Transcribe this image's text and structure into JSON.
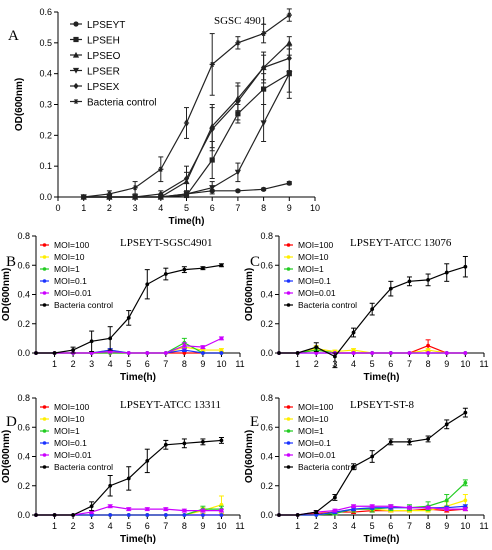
{
  "chart_data": [
    {
      "letter": "A",
      "type": "line",
      "title": "SGSC 4901",
      "xlabel": "Time(h)",
      "ylabel": "OD(600nm)",
      "xlim": [
        0,
        10
      ],
      "ylim": [
        0,
        0.6
      ],
      "xticks": [
        0,
        1,
        2,
        3,
        4,
        5,
        6,
        7,
        8,
        9,
        10
      ],
      "yticks": [
        0.0,
        0.1,
        0.2,
        0.3,
        0.4,
        0.5,
        0.6
      ],
      "ytick_labels": [
        "0.0",
        "0.1",
        "0.2",
        "0.3",
        "0.4",
        "0.5",
        "0.6"
      ],
      "legend_position": "top-left",
      "x": [
        1,
        2,
        3,
        4,
        5,
        6,
        7,
        8,
        9
      ],
      "series": [
        {
          "name": "LPSEYT",
          "marker": "circle",
          "color": "#222222",
          "values": [
            0.0,
            0.0,
            0.0,
            0.0,
            0.01,
            0.02,
            0.02,
            0.025,
            0.045
          ],
          "errors": [
            0,
            0,
            0,
            0,
            0.003,
            0.003,
            0.003,
            0.004,
            0.005
          ]
        },
        {
          "name": "LPSEH",
          "marker": "square",
          "color": "#222222",
          "values": [
            0.0,
            0.0,
            0.0,
            0.0,
            0.005,
            0.12,
            0.27,
            0.35,
            0.4
          ],
          "errors": [
            0,
            0,
            0,
            0,
            0.005,
            0.06,
            0.03,
            0.05,
            0.08
          ]
        },
        {
          "name": "LPSEO",
          "marker": "triangle-up",
          "color": "#222222",
          "values": [
            0.0,
            0.0,
            0.0,
            0.0,
            0.05,
            0.23,
            0.32,
            0.42,
            0.5
          ],
          "errors": [
            0,
            0,
            0,
            0,
            0.03,
            0.07,
            0.04,
            0.04,
            0.02
          ]
        },
        {
          "name": "LPSER",
          "marker": "triangle-down",
          "color": "#222222",
          "values": [
            0.0,
            0.0,
            0.0,
            0.0,
            0.01,
            0.03,
            0.08,
            0.24,
            0.4
          ],
          "errors": [
            0,
            0,
            0,
            0,
            0.005,
            0.02,
            0.03,
            0.06,
            0.06
          ]
        },
        {
          "name": "LPSEX",
          "marker": "diamond",
          "color": "#222222",
          "values": [
            0.0,
            0.0,
            0.0,
            0.01,
            0.06,
            0.22,
            0.31,
            0.42,
            0.45
          ],
          "errors": [
            0,
            0,
            0,
            0.01,
            0.04,
            0.07,
            0.06,
            0.05,
            0.04
          ]
        },
        {
          "name": "Bacteria control",
          "marker": "star",
          "color": "#222222",
          "values": [
            0.0,
            0.01,
            0.03,
            0.09,
            0.24,
            0.43,
            0.5,
            0.53,
            0.59
          ],
          "errors": [
            0,
            0.01,
            0.02,
            0.04,
            0.05,
            0.1,
            0.02,
            0.03,
            0.02
          ]
        }
      ]
    },
    {
      "letter": "B",
      "type": "line",
      "title": "LPSEYT-SGSC4901",
      "xlabel": "Time(h)",
      "ylabel": "OD(600nm)",
      "xlim": [
        0,
        11
      ],
      "ylim": [
        0,
        0.8
      ],
      "xticks": [
        1,
        2,
        3,
        4,
        5,
        6,
        7,
        8,
        9,
        10,
        11
      ],
      "yticks": [
        0.0,
        0.2,
        0.4,
        0.6,
        0.8
      ],
      "ytick_labels": [
        "0.0",
        "0.2",
        "0.4",
        "0.6",
        "0.8"
      ],
      "legend_position": "top-left",
      "x": [
        0,
        1,
        2,
        3,
        4,
        5,
        6,
        7,
        8,
        9,
        10
      ],
      "series": [
        {
          "name": "MOI=100",
          "color": "#ff0000",
          "values": [
            0,
            0,
            0,
            0,
            0,
            0,
            0,
            0,
            0,
            0,
            0
          ],
          "errors": [
            0,
            0,
            0,
            0,
            0,
            0,
            0,
            0,
            0,
            0,
            0
          ]
        },
        {
          "name": "MOI=10",
          "color": "#ffee00",
          "values": [
            0,
            0,
            0,
            0,
            0.02,
            0,
            0,
            0,
            0.04,
            0.02,
            0.02
          ],
          "errors": [
            0,
            0,
            0,
            0,
            0.01,
            0,
            0,
            0,
            0.02,
            0.01,
            0.01
          ]
        },
        {
          "name": "MOI=1",
          "color": "#22cc22",
          "values": [
            0,
            0,
            0,
            0,
            0,
            0,
            0,
            0,
            0.07,
            0,
            0
          ],
          "errors": [
            0,
            0,
            0,
            0,
            0,
            0,
            0,
            0,
            0.03,
            0,
            0
          ]
        },
        {
          "name": "MOI=0.1",
          "color": "#1a33ff",
          "values": [
            0,
            0,
            0,
            0,
            0.02,
            0,
            0,
            0,
            0.02,
            0,
            0
          ],
          "errors": [
            0,
            0,
            0,
            0,
            0.01,
            0,
            0,
            0,
            0.01,
            0,
            0
          ]
        },
        {
          "name": "MOI=0.01",
          "color": "#cc00ff",
          "values": [
            0,
            0,
            0,
            0,
            0.01,
            0,
            0,
            0,
            0.05,
            0.04,
            0.1
          ],
          "errors": [
            0,
            0,
            0,
            0,
            0.01,
            0,
            0,
            0,
            0.02,
            0.01,
            0.01
          ]
        },
        {
          "name": "Bacteria control",
          "color": "#000000",
          "values": [
            0,
            0,
            0.02,
            0.08,
            0.1,
            0.24,
            0.47,
            0.54,
            0.57,
            0.58,
            0.6
          ],
          "errors": [
            0,
            0,
            0.02,
            0.07,
            0.08,
            0.05,
            0.1,
            0.04,
            0.02,
            0.01,
            0.01
          ]
        }
      ]
    },
    {
      "letter": "C",
      "type": "line",
      "title": "LPSEYT-ATCC 13076",
      "xlabel": "Time(h)",
      "ylabel": "OD(600nm)",
      "xlim": [
        0,
        11
      ],
      "ylim": [
        0,
        0.8
      ],
      "xticks": [
        1,
        2,
        3,
        4,
        5,
        6,
        7,
        8,
        9,
        10,
        11
      ],
      "yticks": [
        0.0,
        0.2,
        0.4,
        0.6,
        0.8
      ],
      "ytick_labels": [
        "0.0",
        "0.2",
        "0.4",
        "0.6",
        "0.8"
      ],
      "legend_position": "top-left",
      "x": [
        0,
        1,
        2,
        3,
        4,
        5,
        6,
        7,
        8,
        9,
        10
      ],
      "series": [
        {
          "name": "MOI=100",
          "color": "#ff0000",
          "values": [
            0,
            0,
            0.02,
            0,
            0,
            0,
            0,
            0,
            0.05,
            0,
            0
          ],
          "errors": [
            0,
            0,
            0.02,
            0,
            0,
            0,
            0,
            0,
            0.04,
            0,
            0
          ]
        },
        {
          "name": "MOI=10",
          "color": "#ffee00",
          "values": [
            0,
            0,
            0.03,
            0.01,
            0.02,
            0,
            0,
            0,
            0.02,
            0,
            0
          ],
          "errors": [
            0,
            0,
            0.02,
            0.01,
            0.01,
            0,
            0,
            0,
            0.01,
            0,
            0
          ]
        },
        {
          "name": "MOI=1",
          "color": "#22cc22",
          "values": [
            0,
            0,
            0.02,
            0,
            0,
            0,
            0,
            0,
            0,
            0,
            0
          ],
          "errors": [
            0,
            0,
            0.02,
            0,
            0,
            0,
            0,
            0,
            0,
            0,
            0
          ]
        },
        {
          "name": "MOI=0.1",
          "color": "#1a33ff",
          "values": [
            0,
            0,
            0,
            0,
            0,
            0,
            0,
            0,
            0,
            0,
            0
          ],
          "errors": [
            0,
            0,
            0,
            0,
            0,
            0,
            0,
            0,
            0,
            0,
            0
          ]
        },
        {
          "name": "MOI=0.01",
          "color": "#cc00ff",
          "values": [
            0,
            0,
            0,
            0,
            0,
            0,
            0,
            0,
            0,
            0,
            0
          ],
          "errors": [
            0,
            0,
            0,
            0,
            0,
            0,
            0,
            0,
            0,
            0,
            0
          ]
        },
        {
          "name": "Bacteria control",
          "color": "#000000",
          "values": [
            0,
            0,
            0.04,
            -0.05,
            0.14,
            0.3,
            0.44,
            0.49,
            0.5,
            0.55,
            0.59
          ],
          "errors": [
            0,
            0,
            0.03,
            0.05,
            0.03,
            0.04,
            0.05,
            0.03,
            0.04,
            0.06,
            0.07
          ]
        }
      ]
    },
    {
      "letter": "D",
      "type": "line",
      "title": "LPSEYT-ATCC 13311",
      "xlabel": "Time(h)",
      "ylabel": "OD(600nm)",
      "xlim": [
        0,
        11
      ],
      "ylim": [
        0,
        0.8
      ],
      "xticks": [
        1,
        2,
        3,
        4,
        5,
        6,
        7,
        8,
        9,
        10,
        11
      ],
      "yticks": [
        0.0,
        0.2,
        0.4,
        0.6,
        0.8
      ],
      "ytick_labels": [
        "0.0",
        "0.2",
        "0.4",
        "0.6",
        "0.8"
      ],
      "legend_position": "top-left",
      "x": [
        0,
        1,
        2,
        3,
        4,
        5,
        6,
        7,
        8,
        9,
        10
      ],
      "series": [
        {
          "name": "MOI=100",
          "color": "#ff0000",
          "values": [
            0,
            0,
            0,
            0,
            0,
            0,
            0,
            0,
            0,
            0,
            0
          ],
          "errors": [
            0,
            0,
            0,
            0,
            0,
            0,
            0,
            0,
            0,
            0,
            0
          ]
        },
        {
          "name": "MOI=10",
          "color": "#ffee00",
          "values": [
            0,
            0,
            0,
            0,
            0,
            0,
            0,
            0,
            0,
            0.03,
            0.07
          ],
          "errors": [
            0,
            0,
            0,
            0,
            0,
            0,
            0,
            0,
            0,
            0.02,
            0.06
          ]
        },
        {
          "name": "MOI=1",
          "color": "#22cc22",
          "values": [
            0,
            0,
            0,
            0,
            0,
            0,
            0,
            0,
            0,
            0.04,
            0.04
          ],
          "errors": [
            0,
            0,
            0,
            0,
            0,
            0,
            0,
            0,
            0,
            0.02,
            0.02
          ]
        },
        {
          "name": "MOI=0.1",
          "color": "#1a33ff",
          "values": [
            0,
            0,
            0,
            0,
            0,
            0,
            0,
            0,
            0,
            0,
            0
          ],
          "errors": [
            0,
            0,
            0,
            0,
            0,
            0,
            0,
            0,
            0,
            0,
            0
          ]
        },
        {
          "name": "MOI=0.01",
          "color": "#cc00ff",
          "values": [
            0,
            0,
            0,
            0.02,
            0.06,
            0.04,
            0.04,
            0.04,
            0.03,
            0.03,
            0.03
          ],
          "errors": [
            0,
            0,
            0,
            0.01,
            0.01,
            0.01,
            0.01,
            0.01,
            0.01,
            0.01,
            0.01
          ]
        },
        {
          "name": "Bacteria control",
          "color": "#000000",
          "values": [
            0,
            0,
            0,
            0.06,
            0.2,
            0.25,
            0.37,
            0.48,
            0.49,
            0.5,
            0.51
          ],
          "errors": [
            0,
            0,
            0,
            0.03,
            0.07,
            0.08,
            0.08,
            0.03,
            0.03,
            0.02,
            0.02
          ]
        }
      ]
    },
    {
      "letter": "E",
      "type": "line",
      "title": "LPSEYT-ST-8",
      "xlabel": "Time(h)",
      "ylabel": "OD(600nm)",
      "xlim": [
        0,
        11
      ],
      "ylim": [
        0,
        0.8
      ],
      "xticks": [
        1,
        2,
        3,
        4,
        5,
        6,
        7,
        8,
        9,
        10,
        11
      ],
      "yticks": [
        0.0,
        0.2,
        0.4,
        0.6,
        0.8
      ],
      "ytick_labels": [
        "0.0",
        "0.2",
        "0.4",
        "0.6",
        "0.8"
      ],
      "legend_position": "top-left",
      "x": [
        0,
        1,
        2,
        3,
        4,
        5,
        6,
        7,
        8,
        9,
        10
      ],
      "series": [
        {
          "name": "MOI=100",
          "color": "#ff0000",
          "values": [
            0,
            0,
            0.01,
            0.02,
            0.02,
            0.03,
            0.03,
            0.03,
            0.04,
            0.03,
            0.04
          ],
          "errors": [
            0,
            0,
            0,
            0.01,
            0.01,
            0.01,
            0.01,
            0.01,
            0.01,
            0.01,
            0.01
          ]
        },
        {
          "name": "MOI=10",
          "color": "#ffee00",
          "values": [
            0,
            0,
            0,
            0.02,
            0.04,
            0.04,
            0.03,
            0.03,
            0.03,
            0.06,
            0.1
          ],
          "errors": [
            0,
            0,
            0,
            0.01,
            0.02,
            0.01,
            0.01,
            0.01,
            0.01,
            0.03,
            0.04
          ]
        },
        {
          "name": "MOI=1",
          "color": "#22cc22",
          "values": [
            0,
            0,
            0,
            0.01,
            0.04,
            0.04,
            0.05,
            0.05,
            0.06,
            0.1,
            0.22
          ],
          "errors": [
            0,
            0,
            0,
            0.01,
            0.02,
            0.02,
            0.02,
            0.02,
            0.03,
            0.04,
            0.02
          ]
        },
        {
          "name": "MOI=0.1",
          "color": "#1a33ff",
          "values": [
            0,
            0,
            0,
            0.02,
            0.04,
            0.05,
            0.05,
            0.05,
            0.05,
            0.05,
            0.06
          ],
          "errors": [
            0,
            0,
            0,
            0.01,
            0.01,
            0.01,
            0.01,
            0.01,
            0.01,
            0.01,
            0.01
          ]
        },
        {
          "name": "MOI=0.01",
          "color": "#cc00ff",
          "values": [
            0,
            0,
            0.02,
            0.03,
            0.06,
            0.06,
            0.06,
            0.05,
            0.05,
            0.04,
            0.04
          ],
          "errors": [
            0,
            0,
            0.01,
            0.01,
            0.01,
            0.01,
            0.01,
            0.01,
            0.01,
            0.01,
            0.01
          ]
        },
        {
          "name": "Bacteria control",
          "color": "#000000",
          "values": [
            0,
            0,
            0.02,
            0.12,
            0.33,
            0.4,
            0.5,
            0.5,
            0.52,
            0.62,
            0.7
          ],
          "errors": [
            0,
            0,
            0.01,
            0.02,
            0.02,
            0.04,
            0.02,
            0.02,
            0.02,
            0.03,
            0.03
          ]
        }
      ]
    }
  ]
}
